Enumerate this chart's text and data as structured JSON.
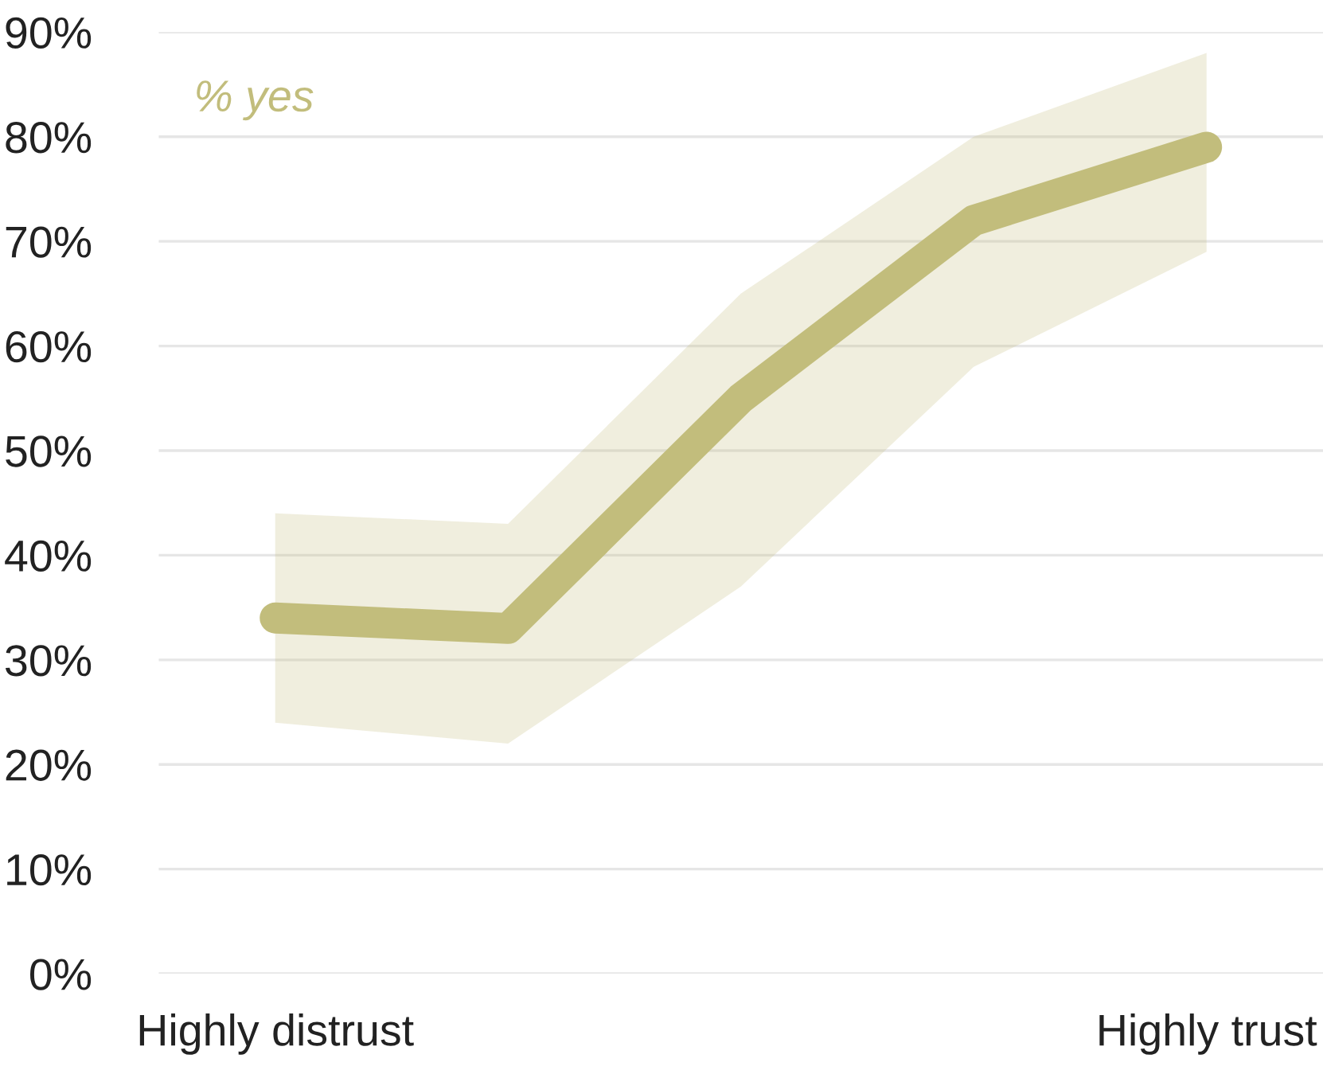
{
  "chart_data": {
    "type": "line",
    "categories": [
      "Highly distrust",
      null,
      null,
      null,
      "Highly trust"
    ],
    "series": [
      {
        "name": "% yes",
        "color": "#c2bd7c",
        "values": [
          34,
          33,
          55,
          72,
          79
        ],
        "lower": [
          24,
          22,
          37,
          58,
          69
        ],
        "upper": [
          44,
          43,
          65,
          80,
          88
        ]
      }
    ],
    "ylim": [
      0,
      90
    ],
    "yticks": [
      {
        "value": 0,
        "label": "0%"
      },
      {
        "value": 10,
        "label": "10%"
      },
      {
        "value": 20,
        "label": "20%"
      },
      {
        "value": 30,
        "label": "30%"
      },
      {
        "value": 40,
        "label": "40%"
      },
      {
        "value": 50,
        "label": "50%"
      },
      {
        "value": 60,
        "label": "60%"
      },
      {
        "value": 70,
        "label": "70%"
      },
      {
        "value": 80,
        "label": "80%"
      },
      {
        "value": 90,
        "label": "90%"
      }
    ],
    "grid": "y",
    "legend": "top left",
    "marker": "none",
    "line_style": "solid"
  }
}
